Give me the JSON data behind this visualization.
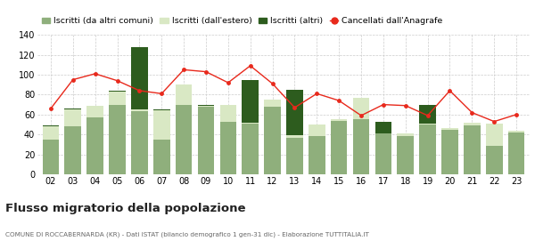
{
  "years": [
    "02",
    "03",
    "04",
    "05",
    "06",
    "07",
    "08",
    "09",
    "10",
    "11",
    "12",
    "13",
    "14",
    "15",
    "16",
    "17",
    "18",
    "19",
    "20",
    "21",
    "22",
    "23"
  ],
  "iscritti_altri_comuni": [
    35,
    48,
    57,
    70,
    63,
    35,
    70,
    68,
    53,
    51,
    68,
    37,
    38,
    54,
    55,
    41,
    38,
    50,
    45,
    49,
    29,
    42
  ],
  "iscritti_estero": [
    13,
    17,
    12,
    13,
    2,
    29,
    20,
    1,
    17,
    1,
    7,
    2,
    12,
    1,
    22,
    0,
    3,
    1,
    1,
    3,
    22,
    2
  ],
  "iscritti_altri": [
    1,
    1,
    0,
    1,
    63,
    1,
    0,
    1,
    0,
    43,
    0,
    46,
    0,
    0,
    0,
    12,
    0,
    19,
    0,
    0,
    0,
    0
  ],
  "cancellati": [
    66,
    95,
    101,
    94,
    84,
    81,
    105,
    103,
    92,
    109,
    91,
    67,
    81,
    74,
    59,
    70,
    69,
    59,
    84,
    62,
    53,
    60
  ],
  "color_altri_comuni": "#8faf7c",
  "color_estero": "#d9e8c4",
  "color_altri": "#2d5c1e",
  "color_cancellati": "#e8291c",
  "bg_color": "#ffffff",
  "grid_color": "#cccccc",
  "ylim": [
    0,
    140
  ],
  "yticks": [
    0,
    20,
    40,
    60,
    80,
    100,
    120,
    140
  ],
  "title": "Flusso migratorio della popolazione",
  "subtitle": "COMUNE DI ROCCABERNARDA (KR) - Dati ISTAT (bilancio demografico 1 gen-31 dic) - Elaborazione TUTTITALIA.IT",
  "legend_labels": [
    "Iscritti (da altri comuni)",
    "Iscritti (dall'estero)",
    "Iscritti (altri)",
    "Cancellati dall'Anagrafe"
  ]
}
